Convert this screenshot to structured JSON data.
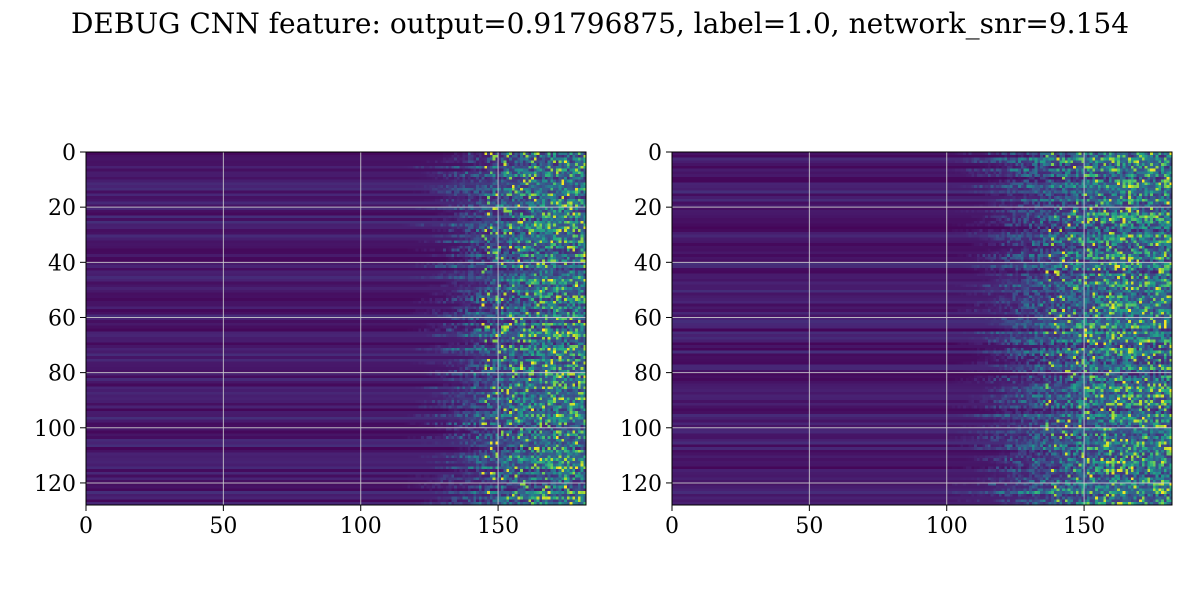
{
  "title": "DEBUG CNN feature: output=0.91796875, label=1.0, network_snr=9.154",
  "colormap": "viridis",
  "colors": {
    "background": "#ffffff",
    "grid": "#d0d0d0",
    "axis": "#000000",
    "viridis_low": "#440154",
    "viridis_mid": "#21918c",
    "viridis_high": "#fde725"
  },
  "chart_data": [
    {
      "type": "heatmap",
      "title": "",
      "xlabel": "",
      "ylabel": "",
      "xlim": [
        0,
        182
      ],
      "ylim": [
        128,
        0
      ],
      "y_inverted": true,
      "grid": true,
      "xticks": [
        0,
        50,
        100,
        150
      ],
      "yticks": [
        0,
        20,
        40,
        60,
        80,
        100,
        120
      ],
      "n_rows": 128,
      "n_cols": 182,
      "activity_onset_col": 125,
      "peak_col": 168
    },
    {
      "type": "heatmap",
      "title": "",
      "xlabel": "",
      "ylabel": "",
      "xlim": [
        0,
        182
      ],
      "ylim": [
        128,
        0
      ],
      "y_inverted": true,
      "grid": true,
      "xticks": [
        0,
        50,
        100,
        150
      ],
      "yticks": [
        0,
        20,
        40,
        60,
        80,
        100,
        120
      ],
      "n_rows": 128,
      "n_cols": 182,
      "activity_onset_col": 110,
      "peak_col": 160
    }
  ]
}
